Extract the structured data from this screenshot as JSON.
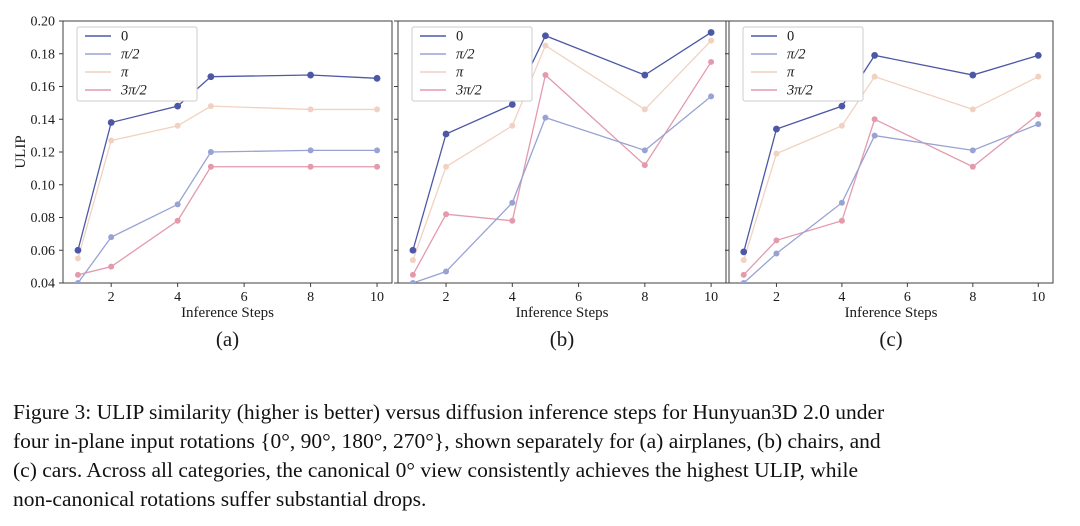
{
  "caption": {
    "lines": [
      "Figure 3: ULIP similarity (higher is better) versus diffusion inference steps for Hunyuan3D 2.0 under",
      "four in-plane input rotations {0°, 90°, 180°, 270°}, shown separately for (a) airplanes, (b) chairs, and",
      "(c) cars. Across all categories, the canonical 0° view consistently achieves the highest ULIP, while",
      "non-canonical rotations suffer substantial drops."
    ]
  },
  "colors": {
    "rot_0": "#4c58a6",
    "rot_90": "#98a3d3",
    "rot_180": "#f1d2c1",
    "rot_270": "#e49aad",
    "axis": "#3f3f3f",
    "legend_border": "#cccccc",
    "text": "#1a1a1a",
    "background": "#ffffff"
  },
  "chart_data": [
    {
      "type": "line",
      "panel_label": "(a)",
      "category": "airplanes",
      "title": "",
      "xlabel": "Inference Steps",
      "ylabel": "ULIP",
      "x": [
        1,
        2,
        4,
        5,
        8,
        10
      ],
      "xticks": [
        2,
        4,
        6,
        8,
        10
      ],
      "yticks": [
        0.04,
        0.06,
        0.08,
        0.1,
        0.12,
        0.14,
        0.16,
        0.18,
        0.2
      ],
      "xlim": [
        0.55,
        10.45
      ],
      "ylim": [
        0.04,
        0.2
      ],
      "show_ytick_labels": true,
      "grid": false,
      "legend_position": "upper-left",
      "series": [
        {
          "name": "0",
          "color": "#4c58a6",
          "values": [
            0.06,
            0.138,
            0.148,
            0.166,
            0.167,
            0.165
          ]
        },
        {
          "name": "π/2",
          "color": "#98a3d3",
          "values": [
            0.04,
            0.068,
            0.088,
            0.12,
            0.121,
            0.121
          ]
        },
        {
          "name": "π",
          "color": "#f1d2c1",
          "values": [
            0.055,
            0.127,
            0.136,
            0.148,
            0.146,
            0.146
          ]
        },
        {
          "name": "3π/2",
          "color": "#e49aad",
          "values": [
            0.045,
            0.05,
            0.078,
            0.111,
            0.111,
            0.111
          ]
        }
      ]
    },
    {
      "type": "line",
      "panel_label": "(b)",
      "category": "chairs",
      "title": "",
      "xlabel": "Inference Steps",
      "ylabel": "",
      "x": [
        1,
        2,
        4,
        5,
        8,
        10
      ],
      "xticks": [
        2,
        4,
        6,
        8,
        10
      ],
      "yticks": [
        0.04,
        0.06,
        0.08,
        0.1,
        0.12,
        0.14,
        0.16,
        0.18,
        0.2
      ],
      "xlim": [
        0.55,
        10.45
      ],
      "ylim": [
        0.04,
        0.2
      ],
      "show_ytick_labels": false,
      "grid": false,
      "legend_position": "upper-left",
      "series": [
        {
          "name": "0",
          "color": "#4c58a6",
          "values": [
            0.06,
            0.131,
            0.149,
            0.191,
            0.167,
            0.193
          ]
        },
        {
          "name": "π/2",
          "color": "#98a3d3",
          "values": [
            0.04,
            0.047,
            0.089,
            0.141,
            0.121,
            0.154
          ]
        },
        {
          "name": "π",
          "color": "#f1d2c1",
          "values": [
            0.054,
            0.111,
            0.136,
            0.185,
            0.146,
            0.188
          ]
        },
        {
          "name": "3π/2",
          "color": "#e49aad",
          "values": [
            0.045,
            0.082,
            0.078,
            0.167,
            0.112,
            0.175
          ]
        }
      ]
    },
    {
      "type": "line",
      "panel_label": "(c)",
      "category": "cars",
      "title": "",
      "xlabel": "Inference Steps",
      "ylabel": "",
      "x": [
        1,
        2,
        4,
        5,
        8,
        10
      ],
      "xticks": [
        2,
        4,
        6,
        8,
        10
      ],
      "yticks": [
        0.04,
        0.06,
        0.08,
        0.1,
        0.12,
        0.14,
        0.16,
        0.18,
        0.2
      ],
      "xlim": [
        0.55,
        10.45
      ],
      "ylim": [
        0.04,
        0.2
      ],
      "show_ytick_labels": false,
      "grid": false,
      "legend_position": "upper-left",
      "series": [
        {
          "name": "0",
          "color": "#4c58a6",
          "values": [
            0.059,
            0.134,
            0.148,
            0.179,
            0.167,
            0.179
          ]
        },
        {
          "name": "π/2",
          "color": "#98a3d3",
          "values": [
            0.04,
            0.058,
            0.089,
            0.13,
            0.121,
            0.137
          ]
        },
        {
          "name": "π",
          "color": "#f1d2c1",
          "values": [
            0.054,
            0.119,
            0.136,
            0.166,
            0.146,
            0.166
          ]
        },
        {
          "name": "3π/2",
          "color": "#e49aad",
          "values": [
            0.045,
            0.066,
            0.078,
            0.14,
            0.111,
            0.143
          ]
        }
      ]
    }
  ]
}
